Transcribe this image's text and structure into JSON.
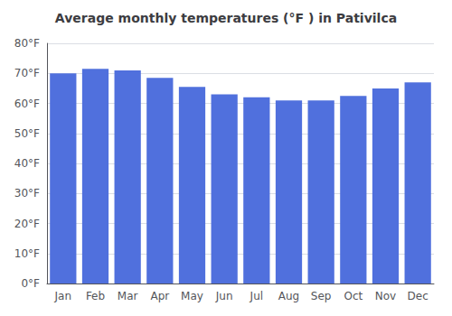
{
  "chart_data": {
    "type": "bar",
    "title": "Average monthly temperatures (°F ) in Pativilca",
    "categories": [
      "Jan",
      "Feb",
      "Mar",
      "Apr",
      "May",
      "Jun",
      "Jul",
      "Aug",
      "Sep",
      "Oct",
      "Nov",
      "Dec"
    ],
    "values": [
      70,
      71.5,
      71,
      68.5,
      65.5,
      63,
      62,
      61,
      61,
      62.5,
      65,
      67
    ],
    "ylim": [
      0,
      80
    ],
    "yticks": [
      {
        "value": 0,
        "label": "0°F"
      },
      {
        "value": 10,
        "label": "10°F"
      },
      {
        "value": 20,
        "label": "20°F"
      },
      {
        "value": 30,
        "label": "30°F"
      },
      {
        "value": 40,
        "label": "40°F"
      },
      {
        "value": 50,
        "label": "50°F"
      },
      {
        "value": 60,
        "label": "60°F"
      },
      {
        "value": 70,
        "label": "70°F"
      },
      {
        "value": 80,
        "label": "80°F"
      }
    ],
    "grid": true
  }
}
